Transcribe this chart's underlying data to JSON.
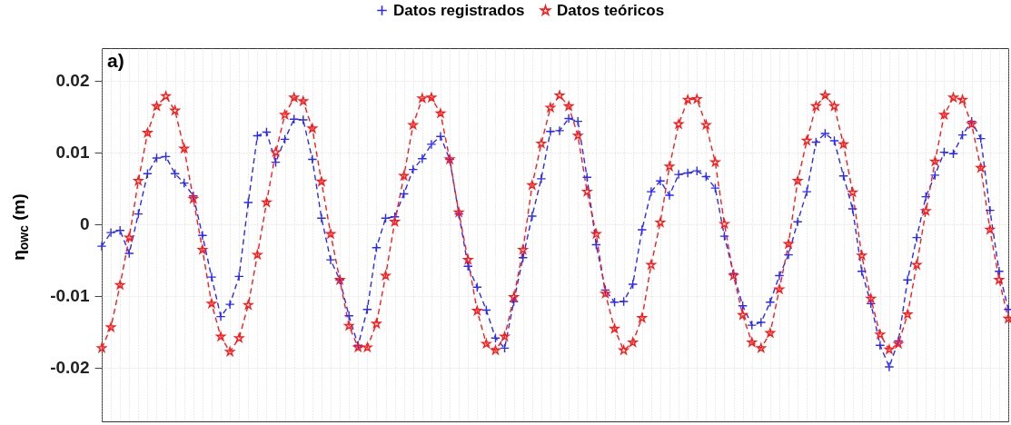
{
  "chart_data": {
    "type": "line",
    "ylabel": "η$_{owc}$ (m)",
    "annotations": [
      "a)"
    ],
    "categories": [
      null,
      null,
      null,
      null,
      null,
      null,
      null,
      null,
      null,
      null,
      null,
      null,
      null,
      null,
      null,
      null,
      null,
      null,
      null,
      null,
      null,
      null,
      null,
      null,
      null,
      null,
      null,
      null,
      null,
      null,
      null,
      null,
      null,
      null,
      null,
      null,
      null,
      null,
      null,
      null,
      null,
      null,
      null,
      null,
      null,
      null,
      null,
      null,
      null,
      null,
      null,
      null,
      null,
      null,
      null,
      null,
      null,
      null,
      null,
      null,
      null,
      null,
      null,
      null,
      null,
      null,
      null,
      null,
      null,
      null,
      null,
      null,
      null,
      null,
      null,
      null,
      null,
      null,
      null,
      null,
      null,
      null,
      null,
      null,
      null,
      null,
      null,
      null,
      null,
      null,
      null,
      null,
      null,
      null,
      null,
      null,
      null,
      null,
      null,
      null
    ],
    "series": [
      {
        "name": "Datos registrados",
        "color": "#2a2aff",
        "marker": "cross",
        "values": [
          -0.0031,
          -0.0012,
          -0.0009,
          -0.0041,
          0.0014,
          0.007,
          0.0092,
          0.0094,
          0.007,
          0.0057,
          0.0039,
          -0.0016,
          -0.0074,
          -0.0129,
          -0.0112,
          -0.0073,
          0.003,
          0.0123,
          0.0128,
          0.0086,
          0.0118,
          0.0146,
          0.0145,
          0.009,
          0.0008,
          -0.005,
          -0.0078,
          -0.0128,
          -0.0169,
          -0.0119,
          -0.0033,
          0.0008,
          0.001,
          0.0042,
          0.0076,
          0.0091,
          0.0111,
          0.0122,
          0.009,
          0.0014,
          -0.0059,
          -0.0088,
          -0.012,
          -0.0159,
          -0.0173,
          -0.0108,
          -0.0047,
          0.0011,
          0.0063,
          0.0129,
          0.013,
          0.0147,
          0.0143,
          0.0065,
          -0.0029,
          -0.0092,
          -0.0109,
          -0.0108,
          -0.0084,
          -0.0008,
          0.0045,
          0.006,
          0.004,
          0.0069,
          0.0071,
          0.0074,
          0.0066,
          0.005,
          -0.0017,
          -0.0069,
          -0.0114,
          -0.0141,
          -0.0137,
          -0.0109,
          -0.0072,
          -0.0043,
          0.0003,
          0.0045,
          0.0114,
          0.0126,
          0.0116,
          0.0067,
          0.0021,
          -0.0066,
          -0.0111,
          -0.0169,
          -0.0199,
          -0.0163,
          -0.0078,
          -0.0019,
          0.0038,
          0.0068,
          0.01,
          0.0098,
          0.0124,
          0.0143,
          0.0119,
          0.0019,
          -0.0066,
          -0.0119
        ]
      },
      {
        "name": "Datos teóricos",
        "color": "#ff1a1a",
        "marker": "star",
        "values": [
          -0.0173,
          -0.0144,
          -0.0085,
          -0.0019,
          0.006,
          0.0127,
          0.0164,
          0.0178,
          0.0158,
          0.0105,
          0.0035,
          -0.0036,
          -0.0111,
          -0.0157,
          -0.0178,
          -0.0159,
          -0.0113,
          -0.0043,
          0.003,
          0.01,
          0.0152,
          0.0176,
          0.0171,
          0.0133,
          0.0059,
          -0.0014,
          -0.0078,
          -0.0142,
          -0.0172,
          -0.0172,
          -0.0139,
          -0.0072,
          0.0003,
          0.0067,
          0.0138,
          0.0175,
          0.0176,
          0.0154,
          0.009,
          0.0016,
          -0.005,
          -0.0121,
          -0.0167,
          -0.0176,
          -0.0157,
          -0.0102,
          -0.0036,
          0.0054,
          0.0112,
          0.0162,
          0.0179,
          0.0164,
          0.0123,
          0.0045,
          -0.0014,
          -0.0097,
          -0.0146,
          -0.0176,
          -0.0165,
          -0.0131,
          -0.0057,
          0.0002,
          0.008,
          0.0139,
          0.0173,
          0.0174,
          0.0138,
          0.0086,
          0.0,
          -0.0072,
          -0.0127,
          -0.0165,
          -0.0173,
          -0.0152,
          -0.0091,
          -0.0028,
          0.006,
          0.0116,
          0.0164,
          0.0179,
          0.0164,
          0.0111,
          0.0044,
          -0.0044,
          -0.0104,
          -0.0154,
          -0.0175,
          -0.0167,
          -0.0126,
          -0.0057,
          0.0018,
          0.0087,
          0.0152,
          0.0176,
          0.0173,
          0.0139,
          0.0078,
          -0.0008,
          -0.0078,
          -0.0132
        ]
      }
    ],
    "ylim": [
      -0.0275,
      0.0245
    ],
    "yticks": [
      -0.02,
      -0.01,
      0,
      0.01,
      0.02
    ],
    "grid": true,
    "legend": "top",
    "tick_labels": "y",
    "line_style": "dashed"
  }
}
